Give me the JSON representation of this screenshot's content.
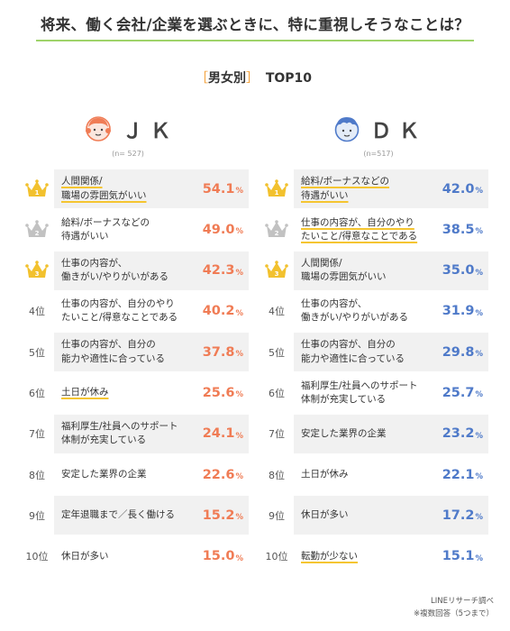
{
  "title": "将来、働く会社/企業を選ぶときに、特に重視しそうなことは？",
  "subtitle": {
    "bracket_open": "［",
    "text": "男女別",
    "bracket_close": "］",
    "suffix": "TOP10"
  },
  "colors": {
    "accent_green": "#9fd36a",
    "jk_value": "#f07c55",
    "dk_value": "#4f7ac9",
    "crown_gold": "#f2c12e",
    "crown_silver": "#c2c2c2",
    "underline": "#f5c531"
  },
  "chart_data": [
    {
      "type": "table",
      "group": "ＪＫ",
      "n": "(n= 527)",
      "rows": [
        {
          "rank": "1",
          "label": [
            "人間関係/",
            "職場の雰囲気がいい"
          ],
          "value": 54.1,
          "underline": true
        },
        {
          "rank": "2",
          "label": [
            "給料/ボーナスなどの",
            "待遇がいい"
          ],
          "value": 49.0,
          "underline": false
        },
        {
          "rank": "3",
          "label": [
            "仕事の内容が、",
            "働きがい/やりがいがある"
          ],
          "value": 42.3,
          "underline": false
        },
        {
          "rank": "4位",
          "label": [
            "仕事の内容が、自分のやり",
            "たいこと/得意なことである"
          ],
          "value": 40.2,
          "underline": false
        },
        {
          "rank": "5位",
          "label": [
            "仕事の内容が、自分の",
            "能力や適性に合っている"
          ],
          "value": 37.8,
          "underline": false
        },
        {
          "rank": "6位",
          "label": [
            "土日が休み"
          ],
          "value": 25.6,
          "underline": true
        },
        {
          "rank": "7位",
          "label": [
            "福利厚生/社員へのサポート",
            "体制が充実している"
          ],
          "value": 24.1,
          "underline": false
        },
        {
          "rank": "8位",
          "label": [
            "安定した業界の企業"
          ],
          "value": 22.6,
          "underline": false
        },
        {
          "rank": "9位",
          "label": [
            "定年退職まで／長く働ける"
          ],
          "value": 15.2,
          "underline": false
        },
        {
          "rank": "10位",
          "label": [
            "休日が多い"
          ],
          "value": 15.0,
          "underline": false
        }
      ]
    },
    {
      "type": "table",
      "group": "ＤＫ",
      "n": "(n=517)",
      "rows": [
        {
          "rank": "1",
          "label": [
            "給料/ボーナスなどの",
            "待遇がいい"
          ],
          "value": 42.0,
          "underline": true
        },
        {
          "rank": "2",
          "label": [
            "仕事の内容が、自分のやり",
            "たいこと/得意なことである"
          ],
          "value": 38.5,
          "underline": true
        },
        {
          "rank": "3",
          "label": [
            "人間関係/",
            "職場の雰囲気がいい"
          ],
          "value": 35.0,
          "underline": false
        },
        {
          "rank": "4位",
          "label": [
            "仕事の内容が、",
            "働きがい/やりがいがある"
          ],
          "value": 31.9,
          "underline": false
        },
        {
          "rank": "5位",
          "label": [
            "仕事の内容が、自分の",
            "能力や適性に合っている"
          ],
          "value": 29.8,
          "underline": false
        },
        {
          "rank": "6位",
          "label": [
            "福利厚生/社員へのサポート",
            "体制が充実している"
          ],
          "value": 25.7,
          "underline": false
        },
        {
          "rank": "7位",
          "label": [
            "安定した業界の企業"
          ],
          "value": 23.2,
          "underline": false
        },
        {
          "rank": "8位",
          "label": [
            "土日が休み"
          ],
          "value": 22.1,
          "underline": false
        },
        {
          "rank": "9位",
          "label": [
            "休日が多い"
          ],
          "value": 17.2,
          "underline": false
        },
        {
          "rank": "10位",
          "label": [
            "転勤が少ない"
          ],
          "value": 15.1,
          "underline": true
        }
      ]
    }
  ],
  "pct_symbol": "%",
  "footer": {
    "source": "LINEリサーチ調べ",
    "note": "※複数回答（5つまで）"
  }
}
